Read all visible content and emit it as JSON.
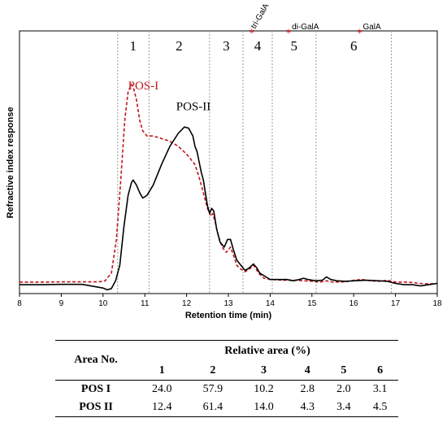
{
  "chart_data": {
    "type": "line",
    "xlabel": "Retention time (min)",
    "ylabel": "Refractive index response",
    "xlim": [
      8,
      18
    ],
    "x_ticks": [
      "8",
      "9",
      "10",
      "11",
      "12",
      "13",
      "14",
      "15",
      "16",
      "17",
      "18"
    ],
    "ylim": [
      0,
      1
    ],
    "grid": false,
    "region_boundaries": [
      10.35,
      11.1,
      12.55,
      13.35,
      14.05,
      15.1,
      16.9
    ],
    "regions": [
      {
        "label": "1",
        "x": 10.72
      },
      {
        "label": "2",
        "x": 11.82
      },
      {
        "label": "3",
        "x": 12.95
      },
      {
        "label": "4",
        "x": 13.7
      },
      {
        "label": "5",
        "x": 14.57
      },
      {
        "label": "6",
        "x": 16.0
      }
    ],
    "standards": [
      {
        "label": "tri-GalA",
        "x": 13.62
      },
      {
        "label": "di-GalA",
        "x": 14.5
      },
      {
        "label": "GalA",
        "x": 16.2
      }
    ],
    "series": [
      {
        "name": "POS-I",
        "color": "#c0161c",
        "style": "dashed",
        "label_at": {
          "x": 10.6,
          "y": 0.78
        },
        "points": [
          [
            8.0,
            0.035
          ],
          [
            8.5,
            0.035
          ],
          [
            9.0,
            0.036
          ],
          [
            9.5,
            0.036
          ],
          [
            9.9,
            0.036
          ],
          [
            10.05,
            0.04
          ],
          [
            10.2,
            0.07
          ],
          [
            10.32,
            0.2
          ],
          [
            10.42,
            0.42
          ],
          [
            10.52,
            0.66
          ],
          [
            10.6,
            0.77
          ],
          [
            10.68,
            0.8
          ],
          [
            10.74,
            0.78
          ],
          [
            10.8,
            0.74
          ],
          [
            10.88,
            0.66
          ],
          [
            10.95,
            0.62
          ],
          [
            11.05,
            0.6
          ],
          [
            11.2,
            0.6
          ],
          [
            11.4,
            0.59
          ],
          [
            11.6,
            0.58
          ],
          [
            11.8,
            0.56
          ],
          [
            12.0,
            0.53
          ],
          [
            12.1,
            0.51
          ],
          [
            12.2,
            0.49
          ],
          [
            12.3,
            0.44
          ],
          [
            12.4,
            0.38
          ],
          [
            12.5,
            0.32
          ],
          [
            12.58,
            0.29
          ],
          [
            12.62,
            0.3
          ],
          [
            12.68,
            0.27
          ],
          [
            12.75,
            0.22
          ],
          [
            12.85,
            0.17
          ],
          [
            12.95,
            0.15
          ],
          [
            13.05,
            0.17
          ],
          [
            13.12,
            0.14
          ],
          [
            13.2,
            0.1
          ],
          [
            13.3,
            0.085
          ],
          [
            13.4,
            0.075
          ],
          [
            13.5,
            0.085
          ],
          [
            13.6,
            0.1
          ],
          [
            13.65,
            0.09
          ],
          [
            13.72,
            0.07
          ],
          [
            13.85,
            0.05
          ],
          [
            14.0,
            0.045
          ],
          [
            14.3,
            0.042
          ],
          [
            14.6,
            0.042
          ],
          [
            14.8,
            0.04
          ],
          [
            15.0,
            0.038
          ],
          [
            15.2,
            0.035
          ],
          [
            15.35,
            0.04
          ],
          [
            15.5,
            0.035
          ],
          [
            15.8,
            0.036
          ],
          [
            16.0,
            0.042
          ],
          [
            16.2,
            0.045
          ],
          [
            16.4,
            0.04
          ],
          [
            16.6,
            0.038
          ],
          [
            16.8,
            0.042
          ],
          [
            17.0,
            0.035
          ],
          [
            17.3,
            0.035
          ],
          [
            17.6,
            0.03
          ],
          [
            17.8,
            0.028
          ],
          [
            18.0,
            0.03
          ]
        ]
      },
      {
        "name": "POS-II",
        "color": "#000000",
        "style": "solid",
        "label_at": {
          "x": 11.75,
          "y": 0.7
        },
        "points": [
          [
            8.0,
            0.025
          ],
          [
            8.5,
            0.025
          ],
          [
            9.0,
            0.026
          ],
          [
            9.5,
            0.026
          ],
          [
            10.0,
            0.012
          ],
          [
            10.1,
            0.005
          ],
          [
            10.2,
            0.01
          ],
          [
            10.3,
            0.04
          ],
          [
            10.4,
            0.1
          ],
          [
            10.5,
            0.25
          ],
          [
            10.6,
            0.37
          ],
          [
            10.68,
            0.42
          ],
          [
            10.72,
            0.43
          ],
          [
            10.8,
            0.41
          ],
          [
            10.88,
            0.38
          ],
          [
            10.95,
            0.36
          ],
          [
            11.05,
            0.37
          ],
          [
            11.2,
            0.41
          ],
          [
            11.4,
            0.49
          ],
          [
            11.6,
            0.56
          ],
          [
            11.8,
            0.61
          ],
          [
            11.95,
            0.635
          ],
          [
            12.05,
            0.63
          ],
          [
            12.15,
            0.6
          ],
          [
            12.2,
            0.56
          ],
          [
            12.25,
            0.54
          ],
          [
            12.3,
            0.5
          ],
          [
            12.35,
            0.46
          ],
          [
            12.4,
            0.43
          ],
          [
            12.45,
            0.38
          ],
          [
            12.5,
            0.33
          ],
          [
            12.55,
            0.3
          ],
          [
            12.6,
            0.32
          ],
          [
            12.65,
            0.31
          ],
          [
            12.72,
            0.24
          ],
          [
            12.8,
            0.19
          ],
          [
            12.9,
            0.17
          ],
          [
            12.98,
            0.2
          ],
          [
            13.05,
            0.2
          ],
          [
            13.12,
            0.16
          ],
          [
            13.2,
            0.12
          ],
          [
            13.3,
            0.1
          ],
          [
            13.4,
            0.08
          ],
          [
            13.5,
            0.09
          ],
          [
            13.6,
            0.105
          ],
          [
            13.68,
            0.09
          ],
          [
            13.75,
            0.07
          ],
          [
            13.9,
            0.055
          ],
          [
            14.0,
            0.045
          ],
          [
            14.2,
            0.045
          ],
          [
            14.4,
            0.045
          ],
          [
            14.55,
            0.04
          ],
          [
            14.7,
            0.045
          ],
          [
            14.8,
            0.05
          ],
          [
            14.9,
            0.045
          ],
          [
            15.1,
            0.04
          ],
          [
            15.25,
            0.042
          ],
          [
            15.35,
            0.055
          ],
          [
            15.45,
            0.045
          ],
          [
            15.6,
            0.04
          ],
          [
            15.8,
            0.038
          ],
          [
            16.0,
            0.04
          ],
          [
            16.3,
            0.042
          ],
          [
            16.6,
            0.04
          ],
          [
            16.8,
            0.038
          ],
          [
            17.0,
            0.03
          ],
          [
            17.2,
            0.025
          ],
          [
            17.4,
            0.025
          ],
          [
            17.6,
            0.02
          ],
          [
            17.8,
            0.025
          ],
          [
            18.0,
            0.03
          ]
        ]
      }
    ]
  },
  "table": {
    "area_no_header": "Area No.",
    "relative_area_header": "Relative area (%)",
    "columns": [
      "1",
      "2",
      "3",
      "4",
      "5",
      "6"
    ],
    "rows": [
      {
        "label": "POS I",
        "values": [
          "24.0",
          "57.9",
          "10.2",
          "2.8",
          "2.0",
          "3.1"
        ]
      },
      {
        "label": "POS II",
        "values": [
          "12.4",
          "61.4",
          "14.0",
          "4.3",
          "3.4",
          "4.5"
        ]
      }
    ]
  }
}
